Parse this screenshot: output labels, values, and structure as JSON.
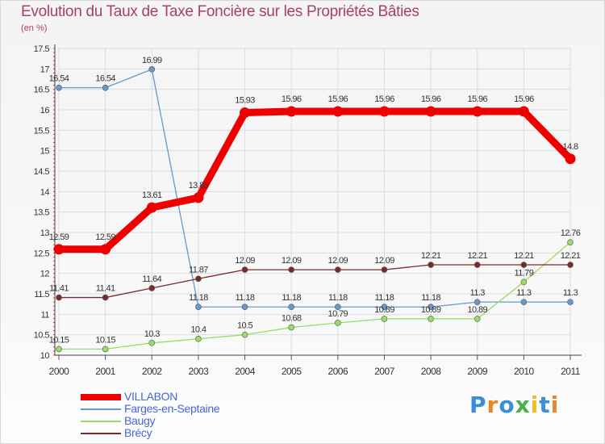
{
  "title": "Evolution du Taux de Taxe Foncière sur les Propriétés Bâties",
  "unit_label": "(en %)",
  "logo": {
    "text": "Proxiti",
    "letters": [
      {
        "ch": "P",
        "color": "#3a8fd8"
      },
      {
        "ch": "r",
        "color": "#e8862a"
      },
      {
        "ch": "o",
        "color": "#3a8fd8"
      },
      {
        "ch": "x",
        "color": "#4ab04a"
      },
      {
        "ch": "i",
        "color": "#e8c02a"
      },
      {
        "ch": "t",
        "color": "#3a8fd8"
      },
      {
        "ch": "i",
        "color": "#e8862a"
      }
    ]
  },
  "chart_data": {
    "type": "line",
    "title": "Evolution du Taux de Taxe Foncière sur les Propriétés Bâties",
    "ylabel": "(en %)",
    "xlabel": "",
    "x": [
      "2000",
      "2001",
      "2002",
      "2003",
      "2004",
      "2005",
      "2006",
      "2007",
      "2008",
      "2009",
      "2010",
      "2011"
    ],
    "ylim": [
      10,
      17.5
    ],
    "yticks": [
      "10",
      "10.5",
      "11",
      "11.5",
      "12",
      "12.5",
      "13",
      "13.5",
      "14",
      "14.5",
      "15",
      "15.5",
      "16",
      "16.5",
      "17",
      "17.5"
    ],
    "grid": true,
    "legend_position": "bottom-left",
    "series": [
      {
        "name": "VILLABON",
        "color": "#ee0000",
        "emphasis": true,
        "values": [
          12.59,
          12.59,
          13.61,
          13.85,
          15.93,
          15.96,
          15.96,
          15.96,
          15.96,
          15.96,
          15.96,
          14.8
        ],
        "labels": [
          "12.59",
          "12.59",
          "13.61",
          "13.85",
          "15.93",
          "15.96",
          "15.96",
          "15.96",
          "15.96",
          "15.96",
          "15.96",
          "14.8"
        ]
      },
      {
        "name": "Farges-en-Septaine",
        "color": "#6699cc",
        "emphasis": false,
        "values": [
          16.54,
          16.54,
          16.99,
          11.18,
          11.18,
          11.18,
          11.18,
          11.18,
          11.18,
          11.3,
          11.3,
          11.3
        ],
        "labels": [
          "16.54",
          "16.54",
          "16.99",
          "11.18",
          "11.18",
          "11.18",
          "11.18",
          "11.18",
          "11.18",
          "11.3",
          "11.3",
          "11.3"
        ]
      },
      {
        "name": "Baugy",
        "color": "#99dd66",
        "emphasis": false,
        "values": [
          10.15,
          10.15,
          10.3,
          10.4,
          10.5,
          10.68,
          10.79,
          10.89,
          10.89,
          10.89,
          11.79,
          12.76
        ],
        "labels": [
          "10.15",
          "10.15",
          "10.3",
          "10.4",
          "10.5",
          "10.68",
          "10.79",
          "10.89",
          "10.89",
          "10.89",
          "11.79",
          "12.76"
        ]
      },
      {
        "name": "Brécy",
        "color": "#7a2a2a",
        "emphasis": false,
        "values": [
          11.41,
          11.41,
          11.64,
          11.87,
          12.09,
          12.09,
          12.09,
          12.09,
          12.21,
          12.21,
          12.21,
          12.21
        ],
        "labels": [
          "11.41",
          "11.41",
          "11.64",
          "11.87",
          "12.09",
          "12.09",
          "12.09",
          "12.09",
          "12.21",
          "12.21",
          "12.21",
          "12.21"
        ]
      }
    ]
  }
}
